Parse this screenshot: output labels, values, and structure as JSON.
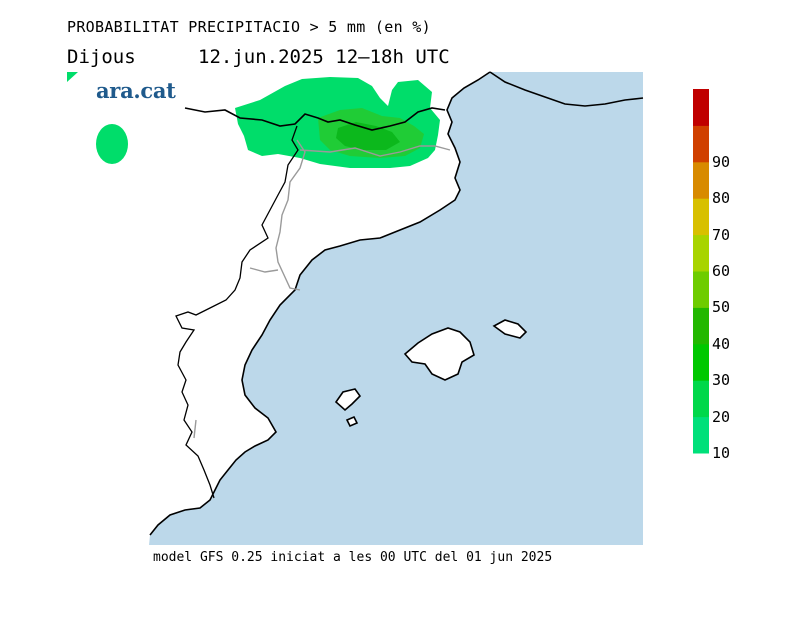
{
  "header": {
    "title": "PROBABILITAT PRECIPITACIO > 5 mm (en %)",
    "day": "Dijous",
    "date_range": "12.jun.2025  12–18h  UTC"
  },
  "logo": {
    "text": "ara.cat",
    "color": "#1f5a8c"
  },
  "footer": {
    "text": "model GFS 0.25 iniciat a les 00 UTC del 01 jun 2025"
  },
  "colors": {
    "sea": "#bcd8ea",
    "land": "#ffffff",
    "coastline": "#000000",
    "border": "#9a9a9a",
    "prob_10": "#00dd66",
    "prob_20": "#22c822",
    "prob_30": "#00aa00"
  },
  "colorbar": {
    "levels": [
      {
        "label": "10",
        "color": "#00e07a"
      },
      {
        "label": "20",
        "color": "#00d84a"
      },
      {
        "label": "30",
        "color": "#00c800"
      },
      {
        "label": "40",
        "color": "#22b800"
      },
      {
        "label": "50",
        "color": "#6ecc00"
      },
      {
        "label": "60",
        "color": "#a8d400"
      },
      {
        "label": "70",
        "color": "#d8c000"
      },
      {
        "label": "80",
        "color": "#d88a00"
      },
      {
        "label": "90",
        "color": "#d04000"
      },
      {
        "label": "",
        "color": "#c00000"
      }
    ]
  }
}
